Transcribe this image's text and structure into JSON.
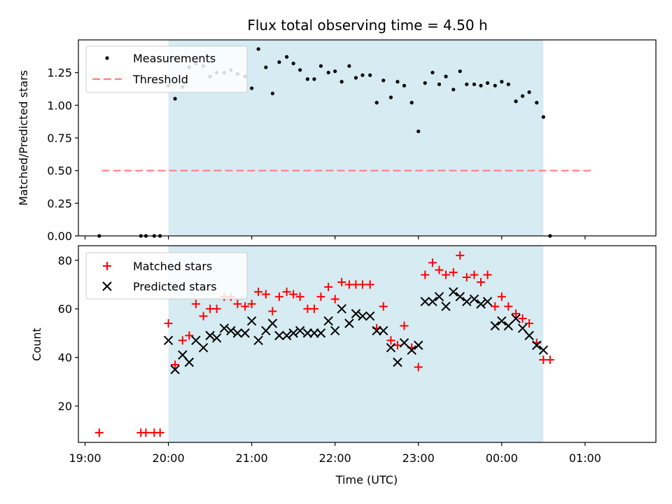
{
  "chart_data": [
    {
      "type": "scatter",
      "title": "Flux total observing time = 4.50 h",
      "xlabel": "",
      "ylabel": "Matched/Predicted stars",
      "xlim": [
        -1.08,
        5.85
      ],
      "ylim": [
        0.0,
        1.5
      ],
      "yticks": [
        0.0,
        0.25,
        0.5,
        0.75,
        1.0,
        1.25
      ],
      "ytick_labels": [
        "0.00",
        "0.25",
        "0.50",
        "0.75",
        "1.00",
        "1.25"
      ],
      "xticks": [
        -1,
        0,
        1,
        2,
        3,
        4,
        5
      ],
      "x_unit_note": "hours relative to 20:00 UTC",
      "shaded_region": {
        "x_start": 0.0,
        "x_end": 4.5,
        "color": "#add8e6"
      },
      "legend": [
        "Measurements",
        "Threshold"
      ],
      "legend_position": "top-left",
      "threshold": {
        "name": "Threshold",
        "y": 0.5,
        "x_start": -0.8,
        "x_end": 5.08,
        "color": "#ff8080",
        "style": "dashed"
      },
      "series": [
        {
          "name": "Measurements",
          "color": "#000000",
          "marker": "dot",
          "x": [
            -0.83,
            -0.33,
            -0.27,
            -0.17,
            -0.1,
            0.0,
            0.08,
            0.17,
            0.25,
            0.33,
            0.42,
            0.5,
            0.58,
            0.67,
            0.75,
            0.83,
            0.92,
            1.0,
            1.08,
            1.17,
            1.25,
            1.33,
            1.42,
            1.5,
            1.58,
            1.67,
            1.75,
            1.83,
            1.92,
            2.0,
            2.08,
            2.17,
            2.25,
            2.33,
            2.42,
            2.5,
            2.58,
            2.67,
            2.75,
            2.83,
            2.92,
            3.0,
            3.08,
            3.17,
            3.25,
            3.33,
            3.42,
            3.5,
            3.58,
            3.67,
            3.75,
            3.83,
            3.92,
            4.0,
            4.08,
            4.17,
            4.25,
            4.33,
            4.42,
            4.5,
            4.58
          ],
          "y": [
            0.0,
            0.0,
            0.0,
            0.0,
            0.0,
            1.15,
            1.05,
            1.14,
            1.29,
            1.32,
            1.3,
            1.22,
            1.25,
            1.25,
            1.27,
            1.24,
            1.22,
            1.13,
            1.43,
            1.29,
            1.09,
            1.33,
            1.37,
            1.32,
            1.27,
            1.2,
            1.2,
            1.3,
            1.25,
            1.26,
            1.18,
            1.3,
            1.21,
            1.23,
            1.23,
            1.02,
            1.19,
            1.06,
            1.18,
            1.15,
            1.02,
            0.8,
            1.17,
            1.25,
            1.16,
            1.22,
            1.12,
            1.26,
            1.16,
            1.16,
            1.15,
            1.17,
            1.15,
            1.18,
            1.16,
            1.03,
            1.07,
            1.1,
            1.02,
            0.91,
            0.0
          ]
        }
      ]
    },
    {
      "type": "scatter",
      "title": "",
      "xlabel": "Time (UTC)",
      "ylabel": "Count",
      "xlim": [
        -1.08,
        5.85
      ],
      "ylim": [
        5,
        86
      ],
      "yticks": [
        20,
        40,
        60,
        80
      ],
      "ytick_labels": [
        "20",
        "40",
        "60",
        "80"
      ],
      "xticks": [
        -1,
        0,
        1,
        2,
        3,
        4,
        5
      ],
      "xtick_labels": [
        "19:00",
        "20:00",
        "21:00",
        "22:00",
        "23:00",
        "00:00",
        "01:00"
      ],
      "shaded_region": {
        "x_start": 0.0,
        "x_end": 4.5,
        "color": "#add8e6"
      },
      "legend": [
        "Matched stars",
        "Predicted stars"
      ],
      "legend_position": "top-left",
      "series": [
        {
          "name": "Matched stars",
          "color": "#ff0000",
          "marker": "plus",
          "x": [
            -0.83,
            -0.33,
            -0.27,
            -0.17,
            -0.1,
            0.0,
            0.08,
            0.17,
            0.25,
            0.33,
            0.42,
            0.5,
            0.58,
            0.67,
            0.75,
            0.83,
            0.92,
            1.0,
            1.08,
            1.17,
            1.25,
            1.33,
            1.42,
            1.5,
            1.58,
            1.67,
            1.75,
            1.83,
            1.92,
            2.0,
            2.08,
            2.17,
            2.25,
            2.33,
            2.42,
            2.5,
            2.58,
            2.67,
            2.75,
            2.83,
            2.92,
            3.0,
            3.08,
            3.17,
            3.25,
            3.33,
            3.42,
            3.5,
            3.58,
            3.67,
            3.75,
            3.83,
            3.92,
            4.0,
            4.08,
            4.17,
            4.25,
            4.33,
            4.42,
            4.5,
            4.58
          ],
          "y": [
            9,
            9,
            9,
            9,
            9,
            54,
            37,
            47,
            49,
            62,
            57,
            60,
            60,
            65,
            65,
            62,
            61,
            62,
            67,
            66,
            59,
            65,
            67,
            66,
            65,
            60,
            60,
            65,
            69,
            64,
            71,
            70,
            70,
            70,
            70,
            52,
            61,
            47,
            45,
            53,
            44,
            36,
            74,
            79,
            76,
            74,
            75,
            82,
            73,
            74,
            71,
            74,
            61,
            65,
            61,
            58,
            56,
            54,
            46,
            39,
            39
          ]
        },
        {
          "name": "Predicted stars",
          "color": "#000000",
          "marker": "x",
          "x": [
            0.0,
            0.08,
            0.17,
            0.25,
            0.33,
            0.42,
            0.5,
            0.58,
            0.67,
            0.75,
            0.83,
            0.92,
            1.0,
            1.08,
            1.17,
            1.25,
            1.33,
            1.42,
            1.5,
            1.58,
            1.67,
            1.75,
            1.83,
            1.92,
            2.0,
            2.08,
            2.17,
            2.25,
            2.33,
            2.42,
            2.5,
            2.58,
            2.67,
            2.75,
            2.83,
            2.92,
            3.0,
            3.08,
            3.17,
            3.25,
            3.33,
            3.42,
            3.5,
            3.58,
            3.67,
            3.75,
            3.83,
            3.92,
            4.0,
            4.08,
            4.17,
            4.25,
            4.33,
            4.42,
            4.5
          ],
          "y": [
            47,
            35,
            41,
            38,
            47,
            44,
            49,
            48,
            52,
            51,
            50,
            50,
            55,
            47,
            51,
            54,
            49,
            49,
            50,
            51,
            50,
            50,
            50,
            55,
            51,
            60,
            54,
            58,
            57,
            57,
            51,
            51,
            44,
            38,
            46,
            43,
            45,
            63,
            63,
            65,
            61,
            67,
            65,
            63,
            64,
            62,
            63,
            53,
            55,
            53,
            56,
            52,
            49,
            45,
            43
          ]
        }
      ]
    }
  ]
}
